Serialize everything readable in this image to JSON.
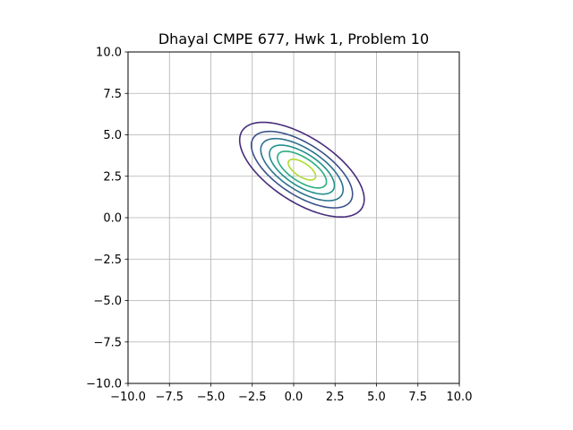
{
  "chart_data": {
    "type": "contour",
    "title": "Dhayal CMPE 677, Hwk 1, Problem 10",
    "xlabel": "",
    "ylabel": "",
    "xlim": [
      -10,
      10
    ],
    "ylim": [
      -10,
      10
    ],
    "grid": true,
    "x_ticks": [
      "−10.0",
      "−7.5",
      "−5.0",
      "−2.5",
      "0.0",
      "2.5",
      "5.0",
      "7.5",
      "10.0"
    ],
    "y_ticks": [
      "−10.0",
      "−7.5",
      "−5.0",
      "−2.5",
      "0.0",
      "2.5",
      "5.0",
      "7.5",
      "10.0"
    ],
    "contours": {
      "center": [
        0.5,
        2.9
      ],
      "angle_deg": -33,
      "levels": [
        {
          "a": 4.3,
          "b": 1.95,
          "color": "#472d7b"
        },
        {
          "a": 3.5,
          "b": 1.55,
          "color": "#3b528b"
        },
        {
          "a": 2.85,
          "b": 1.25,
          "color": "#2c728e"
        },
        {
          "a": 2.25,
          "b": 0.98,
          "color": "#21918c"
        },
        {
          "a": 1.7,
          "b": 0.72,
          "color": "#28ae80"
        },
        {
          "a": 0.95,
          "b": 0.42,
          "color": "#addc30"
        }
      ]
    }
  }
}
